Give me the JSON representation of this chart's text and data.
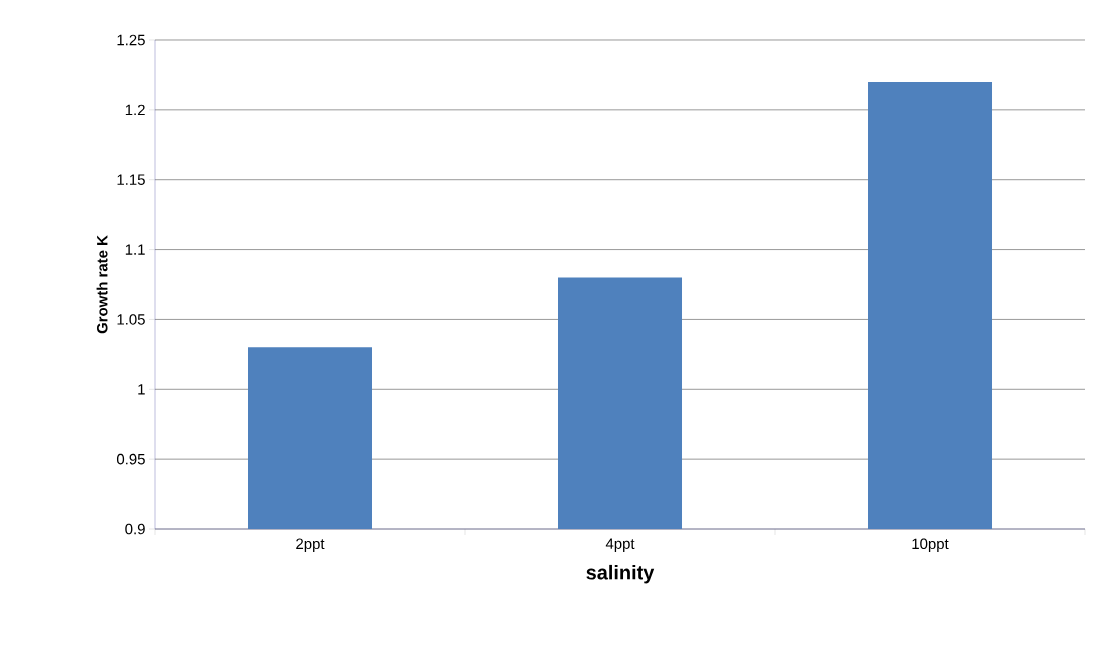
{
  "chart_data": {
    "type": "bar",
    "xlabel": "salinity",
    "ylabel": "Growth rate K",
    "categories": [
      "2ppt",
      "4ppt",
      "10ppt"
    ],
    "values": [
      1.03,
      1.08,
      1.22
    ],
    "color": "#4f81bd",
    "ylim": [
      0.9,
      1.25
    ],
    "yticks": [
      0.9,
      0.95,
      1,
      1.05,
      1.1,
      1.15,
      1.2,
      1.25
    ],
    "grid": "y"
  }
}
